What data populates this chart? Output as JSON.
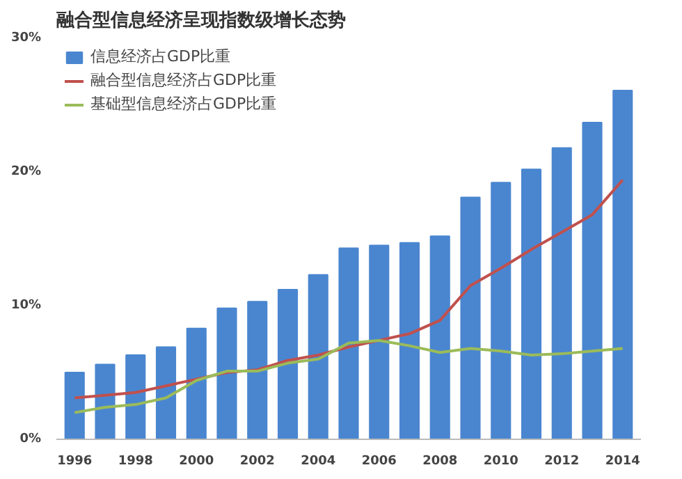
{
  "chart_data": {
    "type": "bar",
    "title": "融合型信息经济呈现指数级增长态势",
    "x": [
      1996,
      1997,
      1998,
      1999,
      2000,
      2001,
      2002,
      2003,
      2004,
      2005,
      2006,
      2007,
      2008,
      2009,
      2010,
      2011,
      2012,
      2013,
      2014
    ],
    "series": [
      {
        "name": "信息经济占GDP比重",
        "color": "#4a86d0",
        "values": [
          5.0,
          5.6,
          6.3,
          6.9,
          8.3,
          9.8,
          10.3,
          11.2,
          12.3,
          14.3,
          14.5,
          14.7,
          15.2,
          18.1,
          19.2,
          20.2,
          21.8,
          23.7,
          26.1
        ]
      },
      {
        "name": "融合型信息经济占GDP比重",
        "type": "line",
        "color": "#c0504d",
        "values": [
          3.1,
          3.3,
          3.5,
          4.0,
          4.5,
          5.0,
          5.2,
          5.9,
          6.3,
          6.9,
          7.4,
          7.9,
          8.9,
          11.5,
          12.8,
          14.2,
          15.5,
          16.8,
          19.4
        ]
      },
      {
        "name": "基础型信息经济占GDP比重",
        "type": "line",
        "color": "#9bbb59",
        "values": [
          2.0,
          2.4,
          2.6,
          3.1,
          4.4,
          5.1,
          5.1,
          5.7,
          6.0,
          7.2,
          7.4,
          7.0,
          6.5,
          6.8,
          6.6,
          6.3,
          6.4,
          6.6,
          6.8
        ]
      }
    ],
    "xlim": [
      1995.4,
      2014.6
    ],
    "xticks": [
      1996,
      1998,
      2000,
      2002,
      2004,
      2006,
      2008,
      2010,
      2012,
      2014
    ],
    "ylim": [
      0,
      30
    ],
    "yticks": [
      {
        "value": 0,
        "label": "0%"
      },
      {
        "value": 10,
        "label": "10%"
      },
      {
        "value": 20,
        "label": "20%"
      },
      {
        "value": 30,
        "label": "30%"
      }
    ],
    "grid": false,
    "legend": "top left",
    "line_style": "solid",
    "marker": "none"
  }
}
